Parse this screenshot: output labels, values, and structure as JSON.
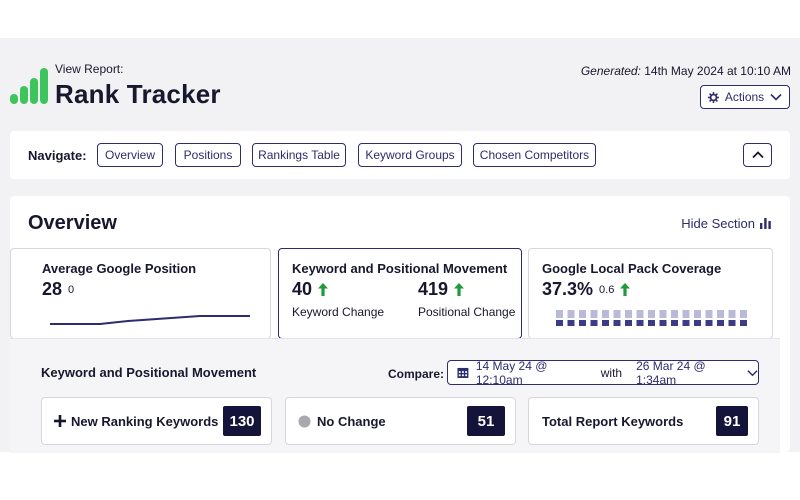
{
  "header": {
    "view_label": "View Report:",
    "title": "Rank Tracker",
    "generated_label": "Generated:",
    "generated_value": "14th May 2024 at 10:10 AM",
    "actions_label": "Actions",
    "brand_color": "#3ec45c"
  },
  "nav": {
    "label": "Navigate:",
    "items": [
      "Overview",
      "Positions",
      "Rankings Table",
      "Keyword Groups",
      "Chosen Competitors"
    ]
  },
  "overview": {
    "title": "Overview",
    "hide_label": "Hide Section",
    "tiles": {
      "avg_position": {
        "title": "Average Google Position",
        "value": "28",
        "change": "0"
      },
      "movement": {
        "title": "Keyword and Positional Movement",
        "keyword_value": "40",
        "keyword_caption": "Keyword Change",
        "positional_value": "419",
        "positional_caption": "Positional Change"
      },
      "local_pack": {
        "title": "Google Local Pack Coverage",
        "value": "37.3%",
        "change": "0.6"
      }
    },
    "panel": {
      "title": "Keyword and Positional Movement",
      "compare_label": "Compare:",
      "compare_from": "14 May 24 @ 12:10am",
      "compare_with": "with",
      "compare_to": "26 Mar 24 @ 1:34am",
      "stats": [
        {
          "label": "New Ranking Keywords",
          "value": "130",
          "icon": "plus-icon"
        },
        {
          "label": "No Change",
          "value": "51",
          "icon": "dot-icon"
        },
        {
          "label": "Total Report Keywords",
          "value": "91",
          "icon": ""
        }
      ]
    }
  },
  "colors": {
    "accent": "#2c2c6e",
    "up": "#1f9a3a",
    "dark_badge": "#14143a"
  }
}
